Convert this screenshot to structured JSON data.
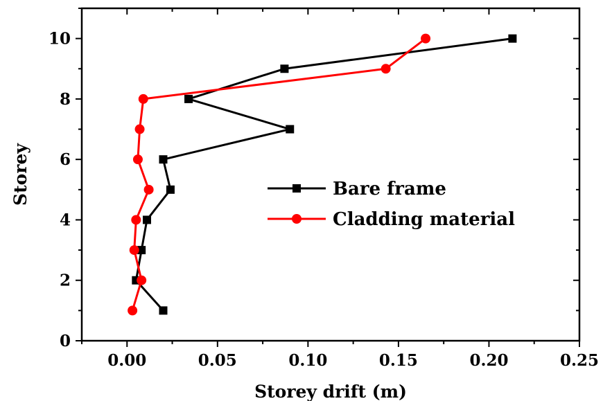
{
  "chart_data": {
    "type": "line",
    "xlabel": "Storey drift (m)",
    "ylabel": "Storey",
    "xlim": [
      -0.025,
      0.25
    ],
    "ylim": [
      0,
      11
    ],
    "xticks": [
      0.0,
      0.05,
      0.1,
      0.15,
      0.2,
      0.25
    ],
    "xtick_labels": [
      "0.00",
      "0.05",
      "0.10",
      "0.15",
      "0.20",
      "0.25"
    ],
    "yticks": [
      0,
      2,
      4,
      6,
      8,
      10
    ],
    "ytick_labels": [
      "0",
      "2",
      "4",
      "6",
      "8",
      "10"
    ],
    "grid": false,
    "legend_position": "center-right",
    "series": [
      {
        "name": "Bare frame",
        "color": "#000000",
        "marker": "square",
        "x": [
          0.02,
          0.005,
          0.008,
          0.011,
          0.024,
          0.02,
          0.09,
          0.034,
          0.087,
          0.213
        ],
        "y": [
          1,
          2,
          3,
          4,
          5,
          6,
          7,
          8,
          9,
          10
        ]
      },
      {
        "name": "Cladding material",
        "color": "#ff0000",
        "marker": "circle",
        "x": [
          0.003,
          0.008,
          0.004,
          0.005,
          0.012,
          0.006,
          0.007,
          0.009,
          0.143,
          0.165
        ],
        "y": [
          1,
          2,
          3,
          4,
          5,
          6,
          7,
          8,
          9,
          10
        ]
      }
    ]
  }
}
